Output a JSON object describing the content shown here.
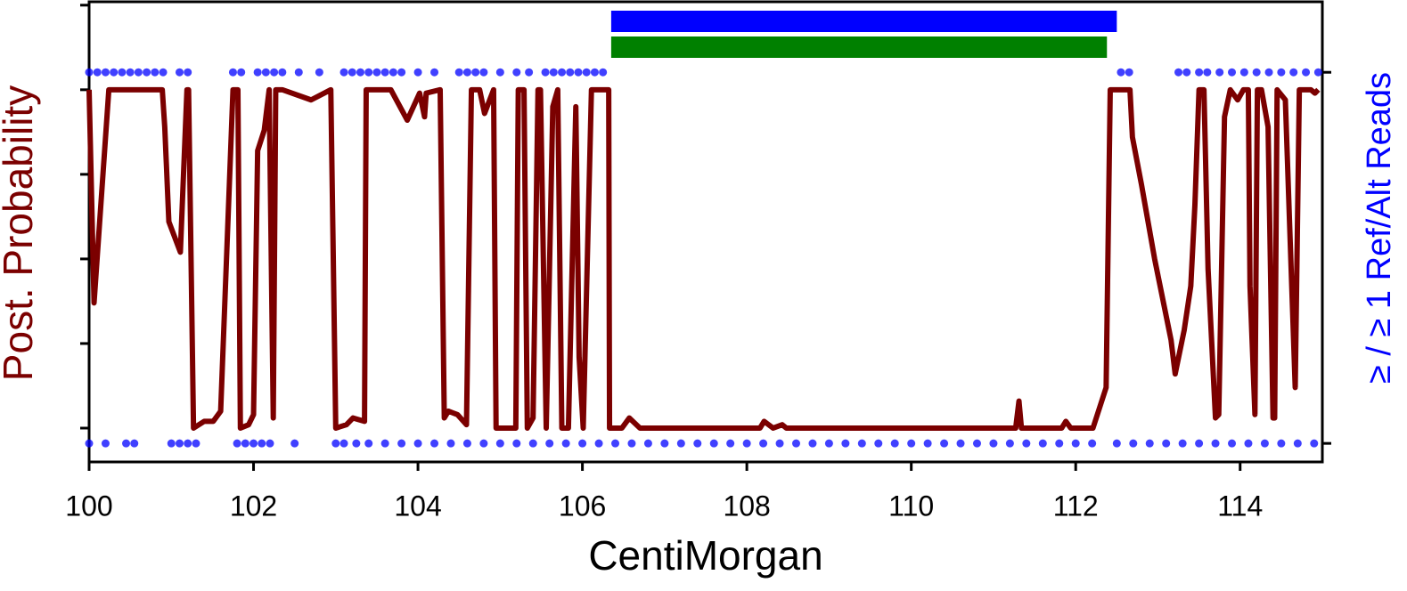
{
  "chart_data": {
    "type": "line",
    "xlabel": "CentiMorgan",
    "ylabel": "Post. Probability",
    "y2label": "≥ / ≥ 1 Ref/Alt Reads",
    "xlim": [
      100,
      115
    ],
    "xticks": [
      100,
      102,
      104,
      106,
      108,
      110,
      112,
      114
    ],
    "ylim": [
      -0.1,
      1.26
    ],
    "yticks": [
      0,
      0.25,
      0.5,
      0.75,
      1,
      1.25
    ],
    "y2lim": [
      -0.05,
      1.19
    ],
    "y2ticks": [
      0,
      1
    ],
    "segments": [
      {
        "start": 106.35,
        "end": 112.5,
        "color": "#0000ff"
      },
      {
        "start": 106.35,
        "end": 112.38,
        "color": "#008000"
      }
    ],
    "series": [
      {
        "type": "line",
        "color": "#7b0000",
        "x": [
          100,
          100.06,
          100.24,
          100.89,
          100.92,
          100.97,
          101.11,
          101.19,
          101.21,
          101.27,
          101.4,
          101.51,
          101.6,
          101.75,
          101.81,
          101.84,
          101.94,
          102.0,
          102.05,
          102.13,
          102.19,
          102.24,
          102.27,
          102.35,
          102.7,
          102.94,
          103.0,
          103.13,
          103.21,
          103.35,
          103.37,
          103.67,
          103.87,
          104.02,
          104.08,
          104.1,
          104.27,
          104.32,
          104.37,
          104.48,
          104.59,
          104.65,
          104.75,
          104.81,
          104.92,
          104.95,
          105.19,
          105.22,
          105.29,
          105.33,
          105.4,
          105.46,
          105.49,
          105.56,
          105.64,
          105.7,
          105.75,
          105.83,
          105.92,
          105.96,
          106.01,
          106.11,
          106.32,
          106.33,
          106.48,
          106.57,
          106.7,
          108.16,
          108.21,
          108.32,
          108.43,
          108.48,
          111.27,
          111.31,
          111.34,
          111.83,
          111.88,
          111.94,
          112.21,
          112.37,
          112.42,
          112.66,
          112.69,
          112.8,
          112.96,
          113.16,
          113.21,
          113.32,
          113.4,
          113.45,
          113.5,
          113.56,
          113.61,
          113.7,
          113.74,
          113.81,
          113.88,
          113.97,
          114.04,
          114.1,
          114.12,
          114.18,
          114.21,
          114.26,
          114.34,
          114.4,
          114.42,
          114.45,
          114.55,
          114.67,
          114.72,
          114.86,
          114.91,
          114.95
        ],
        "values": [
          1,
          0.37,
          1,
          1,
          0.89,
          0.61,
          0.52,
          1,
          1,
          0,
          0.02,
          0.02,
          0.05,
          1,
          1,
          0,
          0.01,
          0.04,
          0.82,
          0.88,
          1,
          0.03,
          1,
          1,
          0.97,
          1,
          0,
          0.01,
          0.03,
          0.02,
          1,
          1,
          0.91,
          0.99,
          0.92,
          0.99,
          1,
          0.03,
          0.05,
          0.04,
          0.01,
          1,
          1,
          0.93,
          1,
          0,
          0,
          1,
          1,
          0,
          0.03,
          1,
          1,
          0,
          0.95,
          1,
          0,
          0,
          0.95,
          0.21,
          0,
          1,
          1,
          0,
          0,
          0.03,
          0,
          0,
          0.02,
          0,
          0.01,
          0,
          0,
          0.08,
          0,
          0,
          0.02,
          0,
          0,
          0.12,
          1,
          1,
          0.86,
          0.72,
          0.5,
          0.26,
          0.16,
          0.29,
          0.42,
          0.66,
          1,
          1,
          0.47,
          0.03,
          0.04,
          0.92,
          1,
          0.97,
          1,
          1,
          0.42,
          0.04,
          1,
          1,
          0.89,
          0.03,
          0.03,
          1,
          0.97,
          0.12,
          1,
          1,
          0.99,
          1
        ]
      },
      {
        "type": "scatter",
        "axis": "y2",
        "color": "#0000ff",
        "x": [
          100,
          100.1,
          100.2,
          100.3,
          100.4,
          100.5,
          100.6,
          100.7,
          100.8,
          100.9,
          101.1,
          101.2,
          101.75,
          101.85,
          102.05,
          102.15,
          102.25,
          102.35,
          102.55,
          102.8,
          103.1,
          103.2,
          103.3,
          103.4,
          103.5,
          103.6,
          103.7,
          103.8,
          104.0,
          104.2,
          104.5,
          104.6,
          104.7,
          104.8,
          105.0,
          105.2,
          105.35,
          105.55,
          105.65,
          105.75,
          105.85,
          105.95,
          106.05,
          106.15,
          106.25,
          112.55,
          112.65,
          113.25,
          113.35,
          113.5,
          113.6,
          113.75,
          113.9,
          114.05,
          114.2,
          114.35,
          114.5,
          114.65,
          114.8,
          114.95
        ],
        "values": [
          1,
          1,
          1,
          1,
          1,
          1,
          1,
          1,
          1,
          1,
          1,
          1,
          1,
          1,
          1,
          1,
          1,
          1,
          1,
          1,
          1,
          1,
          1,
          1,
          1,
          1,
          1,
          1,
          1,
          1,
          1,
          1,
          1,
          1,
          1,
          1,
          1,
          1,
          1,
          1,
          1,
          1,
          1,
          1,
          1,
          1,
          1,
          1,
          1,
          1,
          1,
          1,
          1,
          1,
          1,
          1,
          1,
          1,
          1,
          1
        ]
      },
      {
        "type": "scatter",
        "axis": "y2",
        "color": "#0000ff",
        "x": [
          100,
          100.2,
          100.45,
          100.55,
          101.0,
          101.1,
          101.2,
          101.3,
          101.8,
          101.9,
          102.0,
          102.1,
          102.2,
          102.5,
          103.0,
          103.1,
          103.25,
          103.4,
          103.6,
          103.8,
          104.0,
          104.2,
          104.4,
          104.6,
          104.8,
          105.0,
          105.2,
          105.4,
          105.6,
          105.8,
          106.0,
          106.2,
          106.4,
          106.6,
          106.8,
          107.0,
          107.2,
          107.4,
          107.6,
          107.8,
          108.0,
          108.2,
          108.4,
          108.6,
          108.8,
          109.0,
          109.2,
          109.4,
          109.6,
          109.8,
          110.0,
          110.2,
          110.4,
          110.6,
          110.8,
          111.0,
          111.2,
          111.4,
          111.6,
          111.8,
          112.0,
          112.2,
          112.5,
          112.7,
          112.9,
          113.1,
          113.3,
          113.5,
          113.7,
          113.9,
          114.1,
          114.3,
          114.5,
          114.7,
          114.9
        ],
        "values": [
          0,
          0,
          0,
          0,
          0,
          0,
          0,
          0,
          0,
          0,
          0,
          0,
          0,
          0,
          0,
          0,
          0,
          0,
          0,
          0,
          0,
          0,
          0,
          0,
          0,
          0,
          0,
          0,
          0,
          0,
          0,
          0,
          0,
          0,
          0,
          0,
          0,
          0,
          0,
          0,
          0,
          0,
          0,
          0,
          0,
          0,
          0,
          0,
          0,
          0,
          0,
          0,
          0,
          0,
          0,
          0,
          0,
          0,
          0,
          0,
          0,
          0,
          0,
          0,
          0,
          0,
          0,
          0,
          0,
          0,
          0,
          0,
          0,
          0,
          0
        ]
      }
    ]
  }
}
